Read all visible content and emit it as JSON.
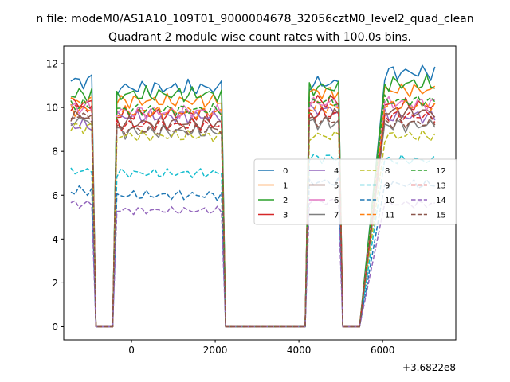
{
  "figure": {
    "suptitle": "n file: modeM0/AS1A10_109T01_9000004678_32056cztM0_level2_quad_clean",
    "offset_label": "+3.6822e8"
  },
  "chart_data": {
    "type": "line",
    "title": "Quadrant 2 module wise count rates with 100.0s bins.",
    "xlabel": "",
    "ylabel": "",
    "xlim": [
      -1620,
      7750
    ],
    "ylim": [
      -0.6,
      12.8
    ],
    "x_ticks": [
      0,
      2000,
      4000,
      6000
    ],
    "y_ticks": [
      0,
      2,
      4,
      6,
      8,
      10,
      12
    ],
    "grid": false,
    "legend": {
      "placement": "center-right",
      "columns": 4
    },
    "x_offset_note": "+3.6822e8",
    "segments": [
      {
        "x_start": -1450,
        "x_end": -950
      },
      {
        "x_start": -350,
        "x_end": 2150
      },
      {
        "x_start": 4250,
        "x_end": 4950
      },
      {
        "x_start": 6050,
        "x_end": 7250
      }
    ],
    "zero_ranges": [
      [
        -850,
        -450
      ],
      [
        2250,
        4150
      ],
      [
        5050,
        5450
      ]
    ],
    "series": [
      {
        "name": "0",
        "color": "#1f77b4",
        "dash": "solid",
        "means": [
          11.2,
          10.9,
          11.1,
          11.6
        ],
        "amplitude": 0.4
      },
      {
        "name": "1",
        "color": "#ff7f0e",
        "dash": "solid",
        "means": [
          9.9,
          10.3,
          10.7,
          10.8
        ],
        "amplitude": 0.35
      },
      {
        "name": "2",
        "color": "#2ca02c",
        "dash": "solid",
        "means": [
          10.6,
          10.6,
          10.9,
          11.1
        ],
        "amplitude": 0.4
      },
      {
        "name": "3",
        "color": "#d62728",
        "dash": "solid",
        "means": [
          10.2,
          9.7,
          10.3,
          10.1
        ],
        "amplitude": 0.35
      },
      {
        "name": "4",
        "color": "#9467bd",
        "dash": "solid",
        "means": [
          9.2,
          9.6,
          9.9,
          9.6
        ],
        "amplitude": 0.35
      },
      {
        "name": "5",
        "color": "#8c564b",
        "dash": "solid",
        "means": [
          9.6,
          9.3,
          9.7,
          9.8
        ],
        "amplitude": 0.35
      },
      {
        "name": "6",
        "color": "#e377c2",
        "dash": "solid",
        "means": [
          10.0,
          9.8,
          10.2,
          10.2
        ],
        "amplitude": 0.35
      },
      {
        "name": "7",
        "color": "#7f7f7f",
        "dash": "solid",
        "means": [
          9.4,
          8.9,
          9.3,
          9.2
        ],
        "amplitude": 0.35
      },
      {
        "name": "8",
        "color": "#bcbd22",
        "dash": "dashed",
        "means": [
          9.1,
          8.7,
          8.7,
          8.7
        ],
        "amplitude": 0.3
      },
      {
        "name": "9",
        "color": "#17becf",
        "dash": "dashed",
        "means": [
          7.1,
          7.0,
          7.7,
          7.6
        ],
        "amplitude": 0.25
      },
      {
        "name": "10",
        "color": "#1f77b4",
        "dash": "dashed",
        "means": [
          6.2,
          6.0,
          6.6,
          6.5
        ],
        "amplitude": 0.25
      },
      {
        "name": "11",
        "color": "#ff7f0e",
        "dash": "dashed",
        "means": [
          10.3,
          9.8,
          10.0,
          10.1
        ],
        "amplitude": 0.3
      },
      {
        "name": "12",
        "color": "#2ca02c",
        "dash": "dashed",
        "means": [
          10.1,
          9.9,
          10.3,
          10.3
        ],
        "amplitude": 0.3
      },
      {
        "name": "13",
        "color": "#d62728",
        "dash": "dashed",
        "means": [
          10.0,
          9.2,
          9.7,
          9.6
        ],
        "amplitude": 0.3
      },
      {
        "name": "14",
        "color": "#9467bd",
        "dash": "dashed",
        "means": [
          5.6,
          5.3,
          5.7,
          5.6
        ],
        "amplitude": 0.2
      },
      {
        "name": "15",
        "color": "#8c564b",
        "dash": "dashed",
        "means": [
          9.6,
          9.0,
          9.4,
          9.3
        ],
        "amplitude": 0.3
      }
    ]
  }
}
